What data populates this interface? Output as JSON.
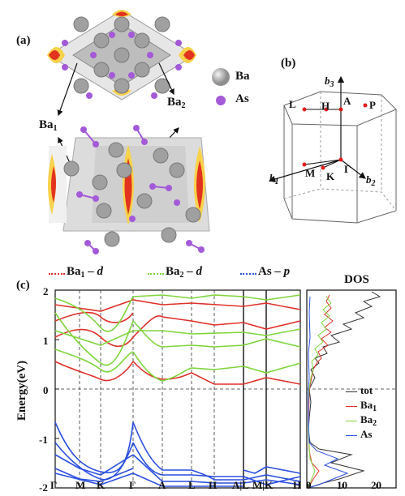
{
  "panels": {
    "a": "(a)",
    "b": "(b)",
    "c": "(c)"
  },
  "crystal": {
    "legend": [
      {
        "symbol": "ball-large-gray",
        "label": "Ba",
        "color": "#a8a8a8"
      },
      {
        "symbol": "ball-small-purple",
        "label": "As",
        "color": "#a45ad8"
      }
    ],
    "site_labels": [
      {
        "main": "Ba",
        "sub": "1"
      },
      {
        "main": "Ba",
        "sub": "2"
      }
    ]
  },
  "brillouin": {
    "points": [
      "L",
      "H",
      "A",
      "P",
      "M",
      "K",
      "Γ"
    ],
    "axes": [
      {
        "main": "b",
        "sub": "1"
      },
      {
        "main": "b",
        "sub": "2"
      },
      {
        "main": "b",
        "sub": "3"
      }
    ]
  },
  "bands": {
    "legend": [
      {
        "main": "Ba",
        "sub": "1",
        "suffix": " – d",
        "color": "#e0302a"
      },
      {
        "main": "Ba",
        "sub": "2",
        "suffix": " – d",
        "color": "#7fd43a"
      },
      {
        "main": "As",
        "sub": "",
        "suffix": " – p",
        "color": "#2b4fe0"
      }
    ],
    "ylabel": "Energy(eV)",
    "yticks": [
      "2",
      "1",
      "0",
      "-1",
      "-2"
    ],
    "kpath": [
      "Γ",
      "M",
      "K",
      "Γ",
      "A",
      "L",
      "H",
      "A|L",
      "M|K",
      "H"
    ]
  },
  "dos": {
    "title": "DOS",
    "xticks": [
      "0",
      "10",
      "20"
    ],
    "legend": [
      {
        "label": "tot",
        "color": "#333333"
      },
      {
        "main": "Ba",
        "sub": "1",
        "color": "#e0302a"
      },
      {
        "main": "Ba",
        "sub": "2",
        "color": "#7fd43a"
      },
      {
        "label": "As",
        "color": "#2b4fe0"
      }
    ]
  },
  "chart_data": {
    "type": "line",
    "title": "",
    "ylabel": "Energy(eV)",
    "ylim": [
      -2,
      2
    ],
    "x": [
      "Γ",
      "M",
      "K",
      "Γ",
      "A",
      "L",
      "H",
      "A|L",
      "M|K",
      "H"
    ],
    "dos_xlim": [
      0,
      20
    ],
    "series": [
      {
        "name": "Ba1 – d",
        "color": "#e0302a"
      },
      {
        "name": "Ba2 – d",
        "color": "#7fd43a"
      },
      {
        "name": "As – p",
        "color": "#2b4fe0"
      }
    ]
  }
}
